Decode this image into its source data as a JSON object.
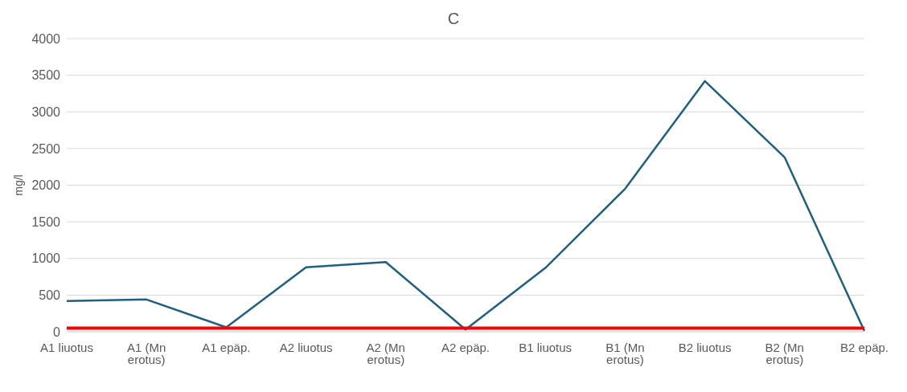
{
  "chart_data": {
    "type": "line",
    "title": "C",
    "ylabel": "mg/l",
    "categories": [
      "A1 liuotus",
      "A1 (Mn erotus)",
      "A1 epäp.",
      "A2 liuotus",
      "A2 (Mn erotus)",
      "A2 epäp.",
      "B1 liuotus",
      "B1  (Mn erotus)",
      "B2 liuotus",
      "B2 (Mn erotus)",
      "B2 epäp."
    ],
    "series": [
      {
        "color": "#1f5f7f",
        "values": [
          420,
          440,
          60,
          880,
          950,
          30,
          870,
          1950,
          3420,
          2380,
          10
        ]
      }
    ],
    "ylim": [
      0,
      4000
    ],
    "yticks": [
      0,
      500,
      1000,
      1500,
      2000,
      2500,
      3000,
      3500,
      4000
    ],
    "grid": "y",
    "legend": false,
    "marker": "none",
    "line_style": "solid",
    "ref_lines": [
      {
        "axis": "y",
        "value": 50,
        "color": "#ff0000"
      }
    ]
  }
}
